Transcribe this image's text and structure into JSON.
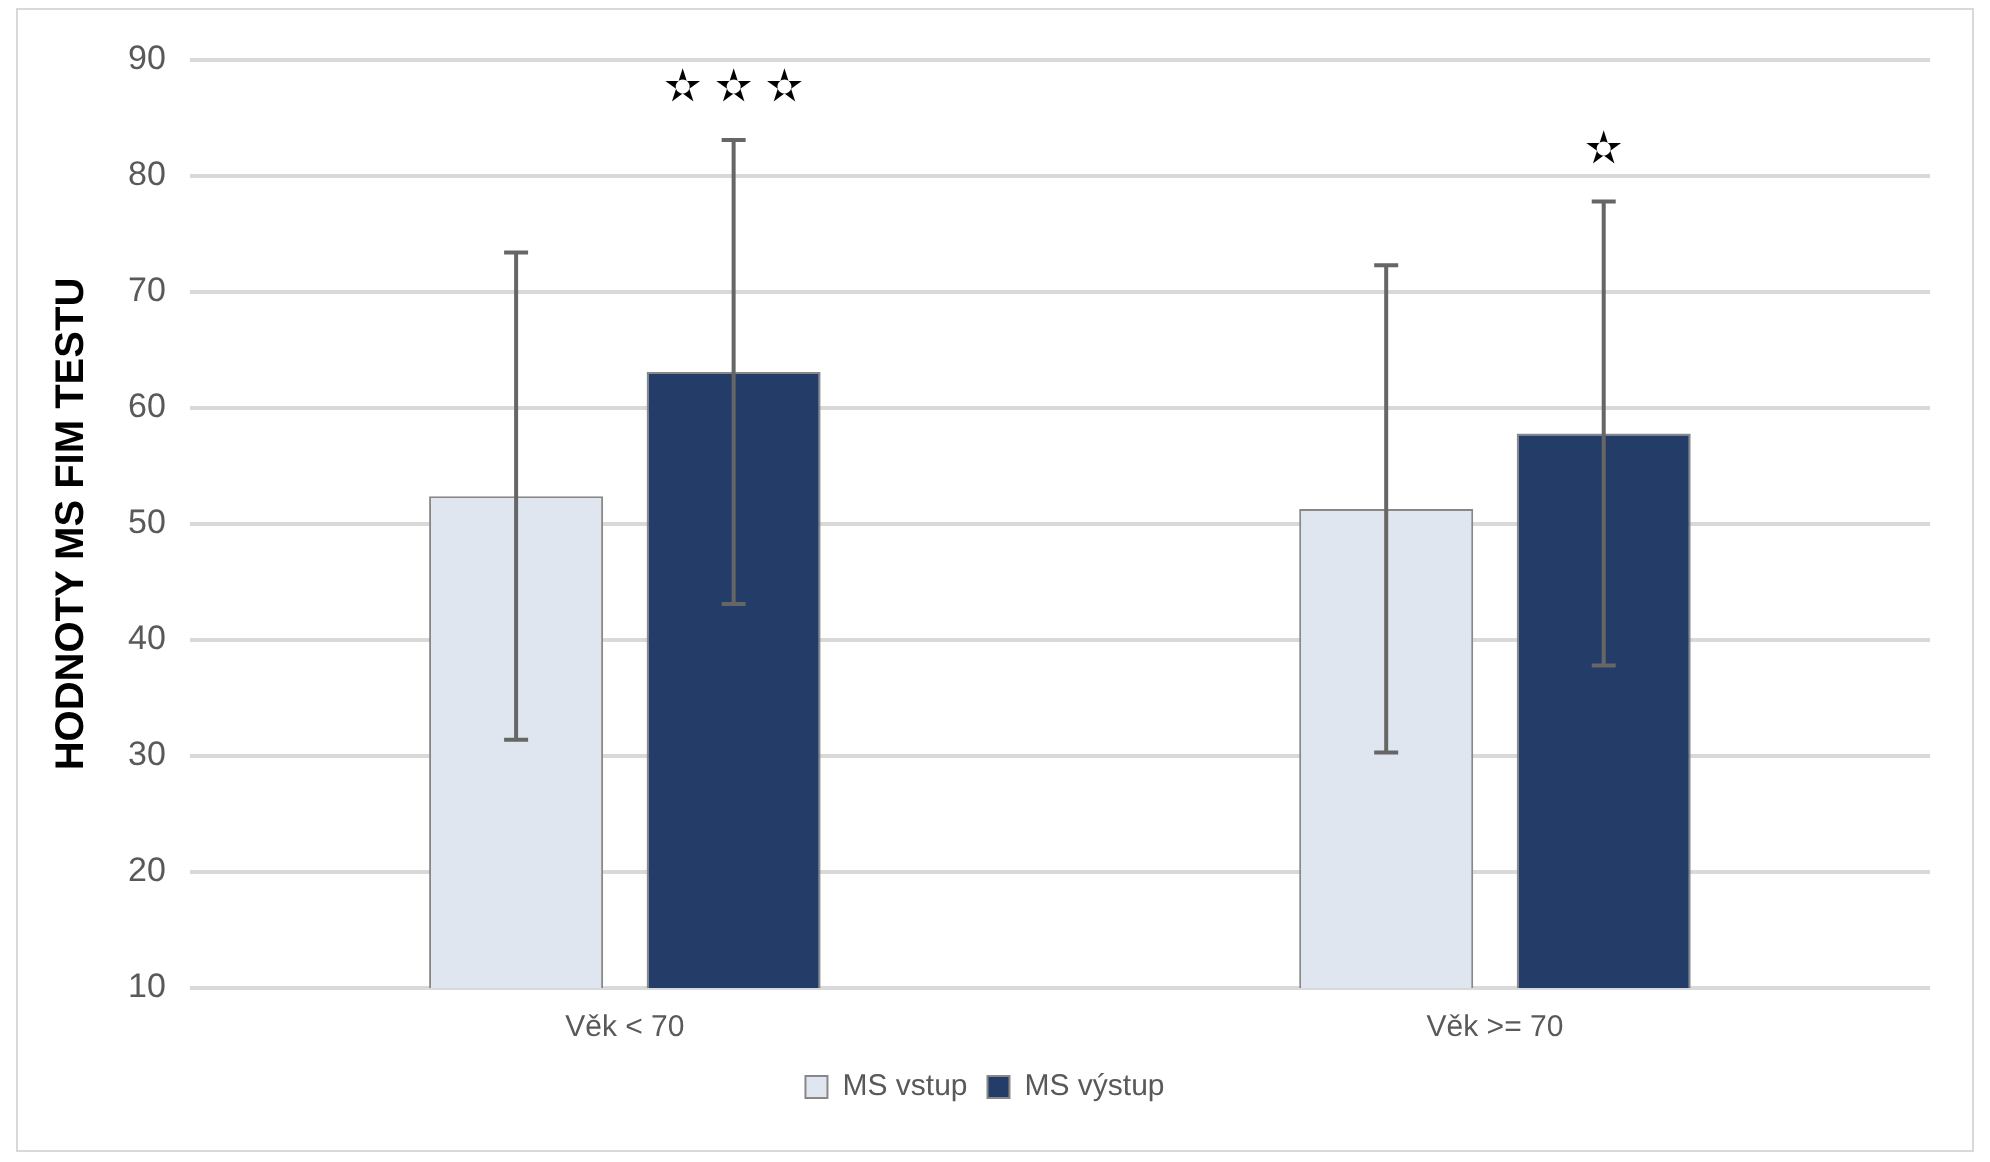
{
  "chart_data": {
    "type": "bar",
    "ylabel": "HODNOTY MS FIM TESTU",
    "categories": [
      "Věk < 70",
      "Věk >= 70"
    ],
    "series": [
      {
        "name": "MS vstup",
        "color": "#dfe6f0",
        "values": [
          52.4,
          51.3
        ],
        "errors": [
          21,
          21
        ]
      },
      {
        "name": "MS výstup",
        "color": "#233c68",
        "values": [
          63.1,
          57.8
        ],
        "errors": [
          20,
          20
        ]
      }
    ],
    "ylim": [
      10,
      90
    ],
    "yticks": [
      10,
      20,
      30,
      40,
      50,
      60,
      70,
      80,
      90
    ],
    "grid": "y",
    "legend": "bottom",
    "annotations": [
      "✫ ✫ ✫",
      "✫"
    ]
  }
}
